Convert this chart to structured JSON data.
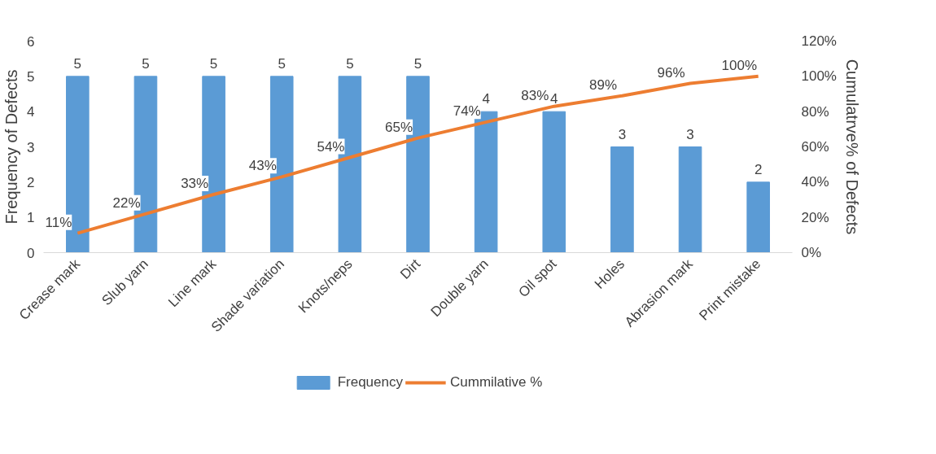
{
  "chart_data": {
    "type": "bar",
    "xlabel": null,
    "ylabel": "Frequency of Defects",
    "y2label": "Cumulatrve% of Defects",
    "categories": [
      "Crease mark",
      "Slub yarn",
      "Line mark",
      "Shade variation",
      "Knots/neps",
      "Dirt",
      "Double yarn",
      "Oil spot",
      "Holes",
      "Abrasion mark",
      "Print mistake"
    ],
    "series": [
      {
        "name": "Frequency",
        "color": "#5b9bd5",
        "values": [
          5,
          5,
          5,
          5,
          5,
          5,
          4,
          4,
          3,
          3,
          2
        ],
        "value_labels": [
          "5",
          "5",
          "5",
          "5",
          "5",
          "5",
          "4",
          "4",
          "3",
          "3",
          "2"
        ]
      },
      {
        "name": "Cummilative %",
        "type": "line",
        "axis": "y2",
        "color": "#ed7d31",
        "values": [
          11,
          22,
          33,
          43,
          54,
          65,
          74,
          83,
          89,
          96,
          100
        ],
        "value_labels": [
          "11%",
          "22%",
          "33%",
          "43%",
          "54%",
          "65%",
          "74%",
          "83%",
          "89%",
          "96%",
          "100%"
        ]
      }
    ],
    "ylim": [
      0,
      6
    ],
    "yticks": [
      0,
      1,
      2,
      3,
      4,
      5,
      6
    ],
    "y2lim": [
      0,
      120
    ],
    "y2ticks": [
      {
        "value": 0,
        "label": "0%"
      },
      {
        "value": 20,
        "label": "20%"
      },
      {
        "value": 40,
        "label": "40%"
      },
      {
        "value": 60,
        "label": "60%"
      },
      {
        "value": 80,
        "label": "80%"
      },
      {
        "value": 100,
        "label": "100%"
      },
      {
        "value": 120,
        "label": "120%"
      }
    ],
    "grid": false,
    "legend": "bottom",
    "marker": "none",
    "line_style": "solid"
  }
}
